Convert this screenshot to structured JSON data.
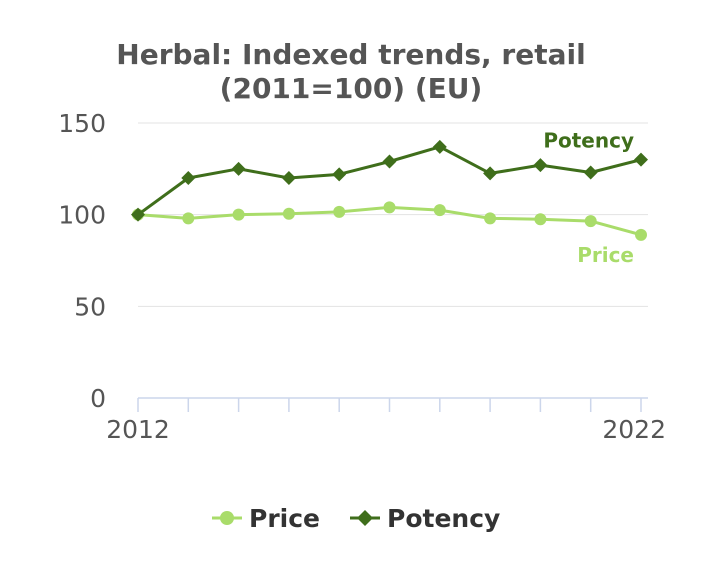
{
  "chart_data": {
    "type": "line",
    "title_line1": "Herbal: Indexed trends, retail",
    "title_line2": "(2011=100) (EU)",
    "x": [
      2012,
      2013,
      2014,
      2015,
      2016,
      2017,
      2018,
      2019,
      2020,
      2021,
      2022
    ],
    "x_tick_labels": [
      "2012",
      "2022"
    ],
    "y_ticks": [
      0,
      50,
      100,
      150
    ],
    "ylim": [
      0,
      150
    ],
    "grid": true,
    "legend_position": "bottom",
    "series": [
      {
        "name": "Price",
        "values": [
          100,
          98,
          100,
          100.5,
          101.5,
          104,
          102.5,
          98,
          97.5,
          96.5,
          89
        ],
        "color": "#a9dc6a",
        "marker": "circle"
      },
      {
        "name": "Potency",
        "values": [
          100,
          120,
          125,
          120,
          122,
          129,
          137,
          122.5,
          127,
          123,
          130
        ],
        "color": "#3f6e1b",
        "marker": "diamond"
      }
    ]
  }
}
